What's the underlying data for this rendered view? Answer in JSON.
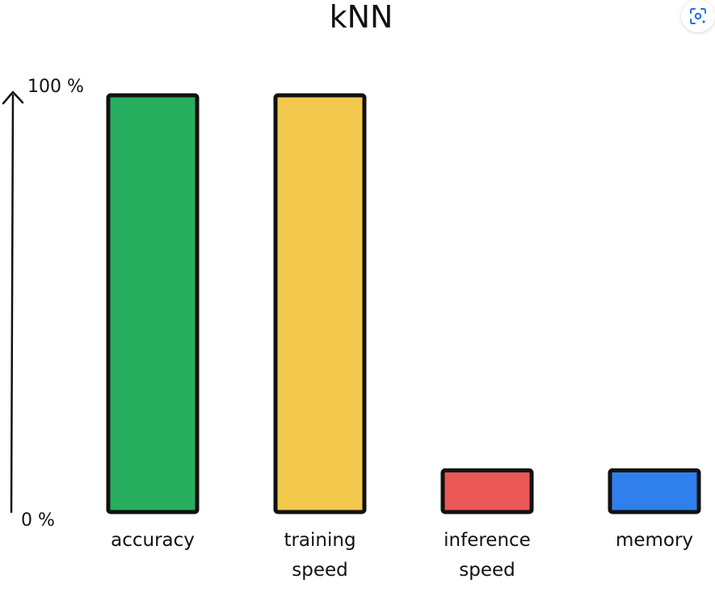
{
  "chart_data": {
    "type": "bar",
    "title": "kNN",
    "categories": [
      "accuracy",
      "training speed",
      "inference speed",
      "memory"
    ],
    "category_lines": [
      [
        "accuracy"
      ],
      [
        "training",
        "speed"
      ],
      [
        "inference",
        "speed"
      ],
      [
        "memory"
      ]
    ],
    "values": [
      100,
      100,
      10,
      10
    ],
    "ylim": [
      0,
      100
    ],
    "ytick_labels": {
      "top": "100 %",
      "bottom": "0 %"
    },
    "colors": [
      "#27AE5F",
      "#F2C94C",
      "#EB5757",
      "#2F80ED"
    ],
    "grid": false,
    "legend": "none"
  },
  "ui": {
    "lens_icon": "google-lens-icon"
  }
}
